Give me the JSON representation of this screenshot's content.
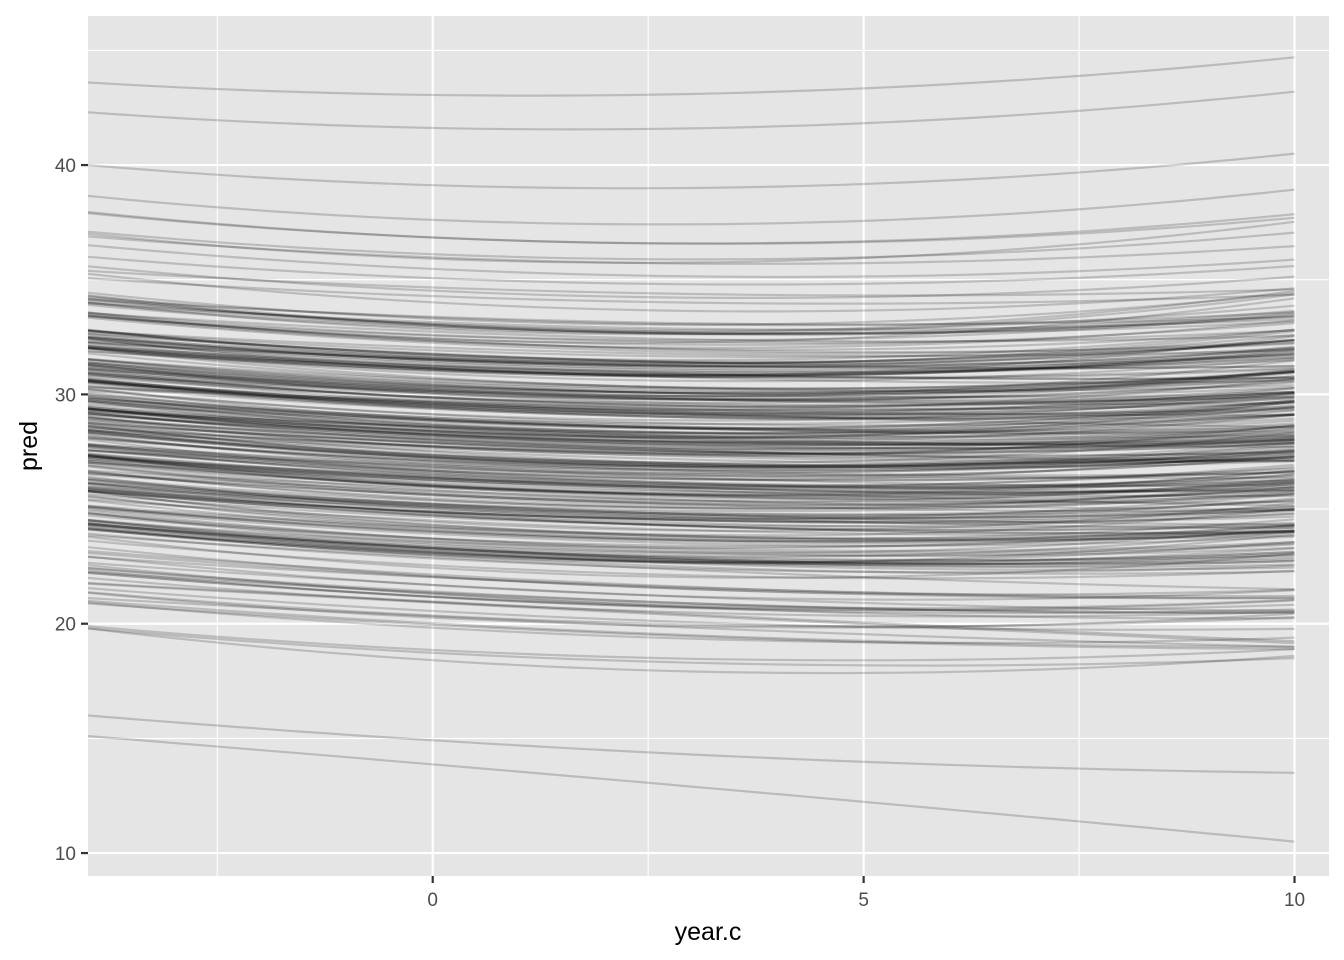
{
  "chart_data": {
    "type": "line",
    "title": "",
    "xlabel": "year.c",
    "ylabel": "pred",
    "xlim": [
      -4.0,
      10.4
    ],
    "ylim": [
      9.0,
      46.5
    ],
    "x_ticks": [
      0,
      5,
      10
    ],
    "x_tick_labels": [
      "0",
      "5",
      "10"
    ],
    "y_ticks": [
      10,
      20,
      30,
      40
    ],
    "y_tick_labels": [
      "10",
      "20",
      "30",
      "40"
    ],
    "x_range": [
      -4,
      10
    ],
    "grid": true,
    "legend": "none",
    "line_color": "#000000",
    "line_opacity": 0.18,
    "panel_background": "#e5e5e5",
    "grid_color": "#ffffff",
    "series_model": "pred = a + b*x + c*x^2",
    "series_count": 300,
    "series_sample": [
      {
        "start": 43.6,
        "mid": 43.1,
        "end": 44.7
      },
      {
        "start": 42.3,
        "mid": 41.6,
        "end": 43.2
      },
      {
        "start": 40.0,
        "mid": 39.0,
        "end": 40.5
      },
      {
        "start": 36.0,
        "mid": 34.8,
        "end": 35.6
      },
      {
        "start": 32.5,
        "mid": 31.2,
        "end": 32.0
      },
      {
        "start": 29.0,
        "mid": 27.6,
        "end": 28.0
      },
      {
        "start": 25.0,
        "mid": 23.5,
        "end": 23.8
      },
      {
        "start": 21.0,
        "mid": 19.5,
        "end": 19.0
      },
      {
        "start": 19.8,
        "mid": 18.3,
        "end": 18.5
      },
      {
        "start": 16.0,
        "mid": 14.3,
        "end": 13.5
      },
      {
        "start": 15.1,
        "mid": 12.9,
        "end": 10.5
      }
    ]
  }
}
